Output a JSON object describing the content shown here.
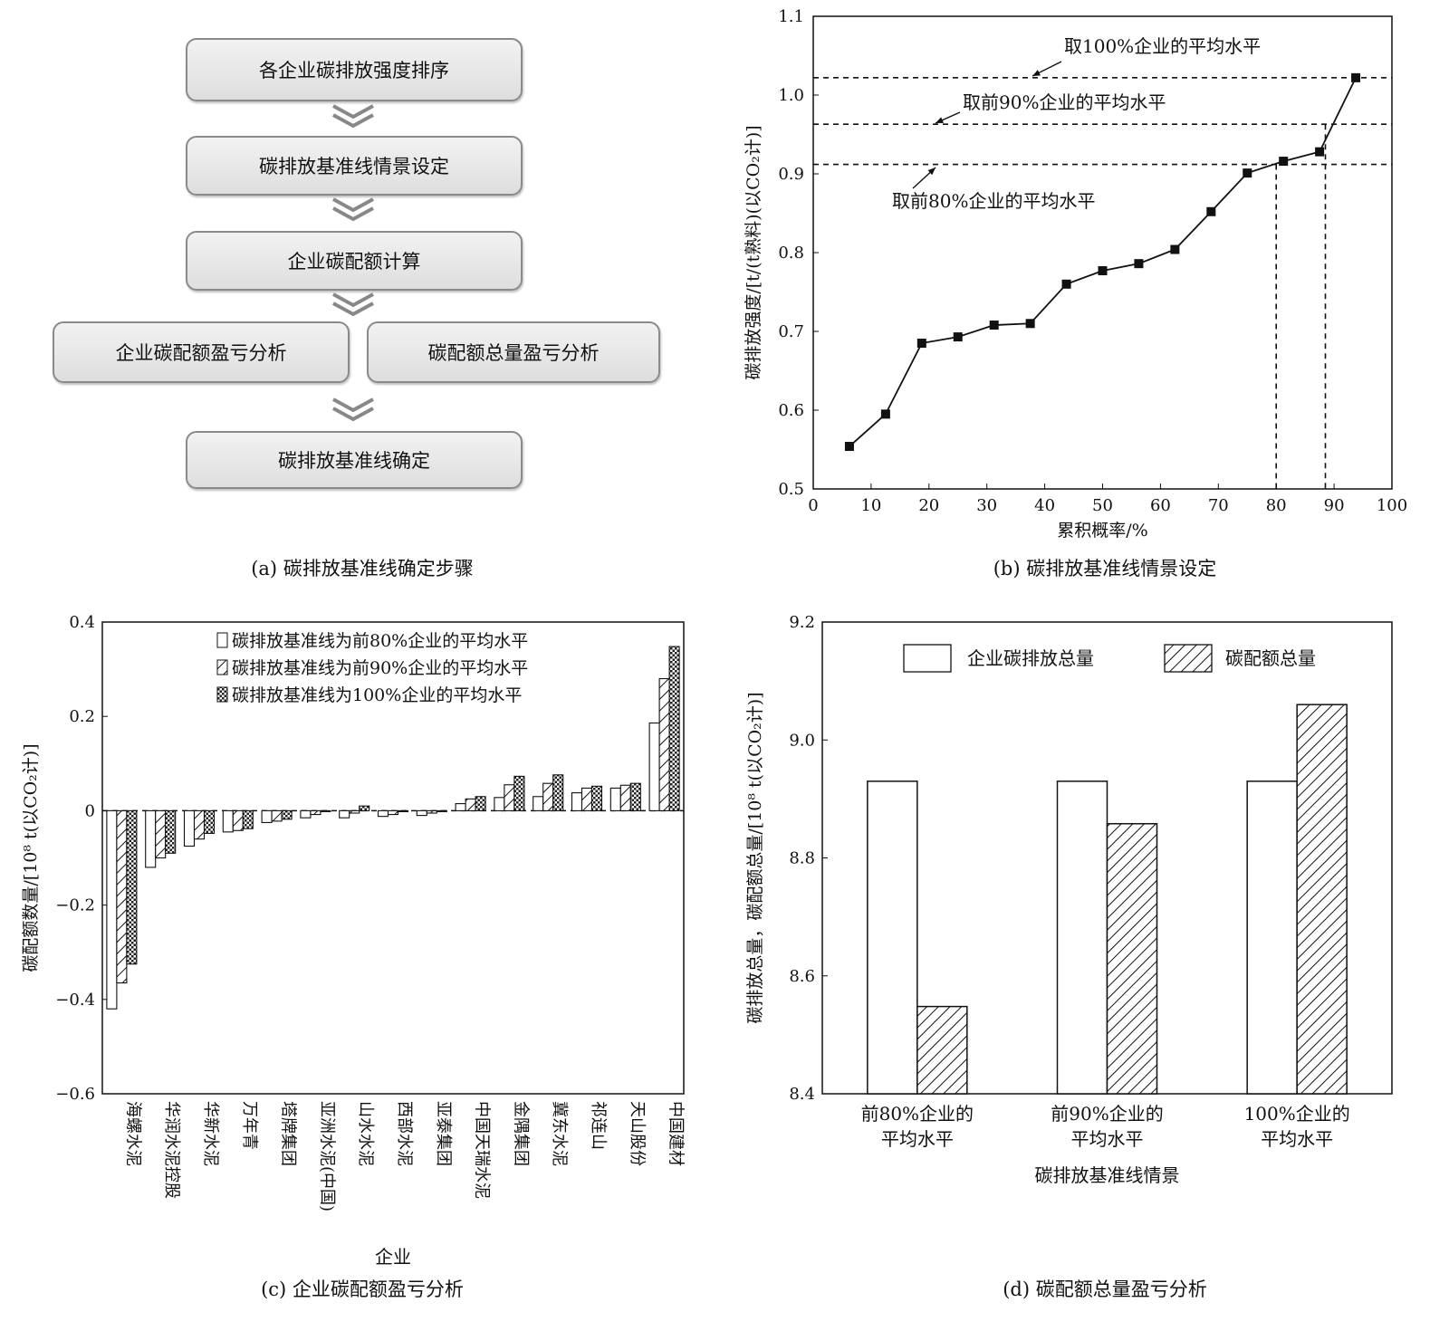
{
  "flowchart": {
    "steps": [
      "各企业碳排放强度排序",
      "碳排放基准线情景设定",
      "企业碳配额计算"
    ],
    "parallel": [
      "企业碳配额盈亏分析",
      "碳配额总量盈亏分析"
    ],
    "final": "碳排放基准线确定"
  },
  "captions": {
    "a": "(a)  碳排放基准线确定步骤",
    "b": "(b)  碳排放基准线情景设定",
    "c": "(c)  企业碳配额盈亏分析",
    "d": "(d)  碳配额总量盈亏分析"
  },
  "chart_data": [
    {
      "id": "b",
      "type": "line",
      "xlabel": "累积概率/%",
      "ylabel": "碳排放强度/[t/(t熟料)(以CO₂计)]",
      "xlim": [
        0,
        100
      ],
      "ylim": [
        0.5,
        1.1
      ],
      "xticks": [
        0,
        10,
        20,
        30,
        40,
        50,
        60,
        70,
        80,
        90,
        100
      ],
      "yticks": [
        0.5,
        0.6,
        0.7,
        0.8,
        0.9,
        1.0,
        1.1
      ],
      "ytick_labels": [
        "0.5",
        "0.6",
        "0.7",
        "0.8",
        "0.9",
        "1.0",
        "1.1"
      ],
      "series": [
        {
          "x": [
            6.25,
            12.5,
            18.75,
            25,
            31.25,
            37.5,
            43.75,
            50,
            56.25,
            62.5,
            68.75,
            75,
            81.25,
            87.5,
            93.75
          ],
          "values": [
            0.554,
            0.595,
            0.685,
            0.693,
            0.708,
            0.71,
            0.76,
            0.777,
            0.786,
            0.804,
            0.852,
            0.901,
            0.916,
            0.928,
            1.022
          ]
        }
      ],
      "reference_lines": [
        {
          "y": 1.022,
          "label": "取100%企业的平均水平"
        },
        {
          "y": 0.963,
          "label": "取前90%企业的平均水平",
          "x_end": 88.5
        },
        {
          "y": 0.912,
          "label": "取前80%企业的平均水平",
          "x_end": 80
        }
      ]
    },
    {
      "id": "c",
      "type": "bar",
      "xlabel": "企业",
      "ylabel": "碳配额数量/[10⁸ t(以CO₂计)]",
      "ylim": [
        -0.6,
        0.4
      ],
      "yticks": [
        -0.6,
        -0.4,
        -0.2,
        0,
        0.2,
        0.4
      ],
      "ytick_labels": [
        "−0.6",
        "−0.4",
        "−0.2",
        "0",
        "0.2",
        "0.4"
      ],
      "legend_position": "top-left",
      "categories": [
        "海螺水泥",
        "华润水泥控股",
        "华新水泥",
        "万年青",
        "塔牌集团",
        "亚洲水泥(中国)",
        "山水水泥",
        "西部水泥",
        "亚泰集团",
        "中国天瑞水泥",
        "金隅集团",
        "冀东水泥",
        "祁连山",
        "天山股份",
        "中国建材"
      ],
      "series": [
        {
          "name": "碳排放基准线为前80%企业的平均水平",
          "values": [
            -0.42,
            -0.12,
            -0.075,
            -0.045,
            -0.025,
            -0.015,
            -0.015,
            -0.012,
            -0.01,
            0.015,
            0.028,
            0.03,
            0.038,
            0.048,
            0.186
          ]
        },
        {
          "name": "碳排放基准线为前90%企业的平均水平",
          "values": [
            -0.365,
            -0.1,
            -0.06,
            -0.042,
            -0.022,
            -0.008,
            -0.005,
            -0.008,
            -0.005,
            0.025,
            0.055,
            0.058,
            0.048,
            0.054,
            0.28
          ]
        },
        {
          "name": "碳排放基准线为100%企业的平均水平",
          "values": [
            -0.325,
            -0.09,
            -0.048,
            -0.038,
            -0.018,
            0.0,
            0.01,
            -0.002,
            0.0,
            0.03,
            0.073,
            0.076,
            0.052,
            0.058,
            0.348
          ]
        }
      ]
    },
    {
      "id": "d",
      "type": "bar",
      "xlabel": "碳排放基准线情景",
      "ylabel": "碳排放总量，碳配额总量/[10⁸ t(以CO₂计)]",
      "ylim": [
        8.4,
        9.2
      ],
      "yticks": [
        8.4,
        8.6,
        8.8,
        9.0,
        9.2
      ],
      "ytick_labels": [
        "8.4",
        "8.6",
        "8.8",
        "9.0",
        "9.2"
      ],
      "legend_position": "top",
      "categories": [
        [
          "前80%企业的",
          "平均水平"
        ],
        [
          "前90%企业的",
          "平均水平"
        ],
        [
          "100%企业的",
          "平均水平"
        ]
      ],
      "series": [
        {
          "name": "企业碳排放总量",
          "values": [
            8.93,
            8.93,
            8.93
          ]
        },
        {
          "name": "碳配额总量",
          "values": [
            8.548,
            8.858,
            9.06
          ]
        }
      ]
    }
  ]
}
